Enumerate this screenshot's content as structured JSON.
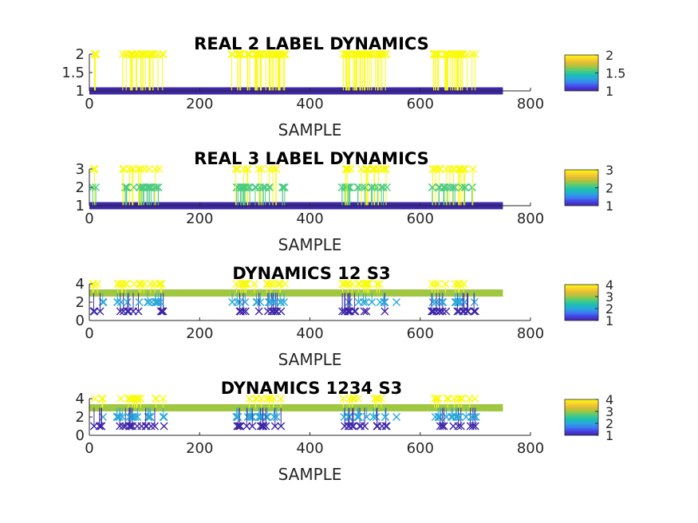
{
  "colormap": [
    "#3e26a8",
    "#4740e5",
    "#3b7ef2",
    "#2aa8db",
    "#1ac0b0",
    "#4ccb82",
    "#9fc73f",
    "#e0bb38",
    "#fbd42a",
    "#f9fb0e"
  ],
  "chart_data": [
    {
      "type": "scatter",
      "title": "REAL 2 LABEL DYNAMICS",
      "xlabel": "SAMPLE",
      "ylabel": "",
      "xlim": [
        0,
        800
      ],
      "ylim": [
        1,
        2
      ],
      "xticks": [
        "0",
        "200",
        "400",
        "600",
        "800"
      ],
      "yticks": [
        "1",
        "1.5",
        "2"
      ],
      "colorbar": {
        "range": [
          1,
          2
        ],
        "ticks": [
          "1",
          "1.5",
          "2"
        ]
      },
      "baseline": 1,
      "sample_range": [
        0,
        750
      ],
      "segments": [
        [
          5,
          15
        ],
        [
          60,
          135
        ],
        [
          258,
          355
        ],
        [
          458,
          540
        ],
        [
          620,
          700
        ]
      ],
      "levels": [
        2
      ],
      "grid": false
    },
    {
      "type": "scatter",
      "title": "REAL 3 LABEL DYNAMICS",
      "xlabel": "SAMPLE",
      "ylabel": "",
      "xlim": [
        0,
        800
      ],
      "ylim": [
        1,
        3
      ],
      "xticks": [
        "0",
        "200",
        "400",
        "600",
        "800"
      ],
      "yticks": [
        "1",
        "2",
        "3"
      ],
      "colorbar": {
        "range": [
          1,
          3
        ],
        "ticks": [
          "1",
          "2",
          "3"
        ]
      },
      "baseline": 1,
      "sample_range": [
        0,
        750
      ],
      "segments": [
        [
          5,
          15
        ],
        [
          60,
          135
        ],
        [
          258,
          355
        ],
        [
          458,
          540
        ],
        [
          620,
          700
        ]
      ],
      "levels": [
        2,
        3
      ],
      "grid": false
    },
    {
      "type": "scatter",
      "title": "DYNAMICS 12 S3",
      "xlabel": "SAMPLE",
      "ylabel": "",
      "xlim": [
        0,
        800
      ],
      "ylim": [
        0,
        4
      ],
      "xticks": [
        "0",
        "200",
        "400",
        "600",
        "800"
      ],
      "yticks": [
        "0",
        "2",
        "4"
      ],
      "colorbar": {
        "range": [
          1,
          4
        ],
        "ticks": [
          "1",
          "2",
          "3",
          "4"
        ]
      },
      "baseline": 3,
      "sample_range": [
        0,
        750
      ],
      "segments": [
        [
          5,
          25
        ],
        [
          50,
          135
        ],
        [
          258,
          355
        ],
        [
          458,
          540
        ],
        [
          620,
          700
        ]
      ],
      "levels": [
        1,
        2,
        4
      ],
      "extra_points": [
        {
          "x": 557,
          "y": 2
        }
      ],
      "grid": false
    },
    {
      "type": "scatter",
      "title": "DYNAMICS 1234 S3",
      "xlabel": "SAMPLE",
      "ylabel": "",
      "xlim": [
        0,
        800
      ],
      "ylim": [
        0,
        4
      ],
      "xticks": [
        "0",
        "200",
        "400",
        "600",
        "800"
      ],
      "yticks": [
        "0",
        "2",
        "4"
      ],
      "colorbar": {
        "range": [
          1,
          4
        ],
        "ticks": [
          "1",
          "2",
          "3",
          "4"
        ]
      },
      "baseline": 3,
      "sample_range": [
        0,
        750
      ],
      "segments": [
        [
          5,
          25
        ],
        [
          50,
          135
        ],
        [
          258,
          355
        ],
        [
          458,
          540
        ],
        [
          620,
          700
        ]
      ],
      "levels": [
        1,
        2,
        4
      ],
      "extra_points": [
        {
          "x": 557,
          "y": 2
        }
      ],
      "grid": false
    }
  ]
}
